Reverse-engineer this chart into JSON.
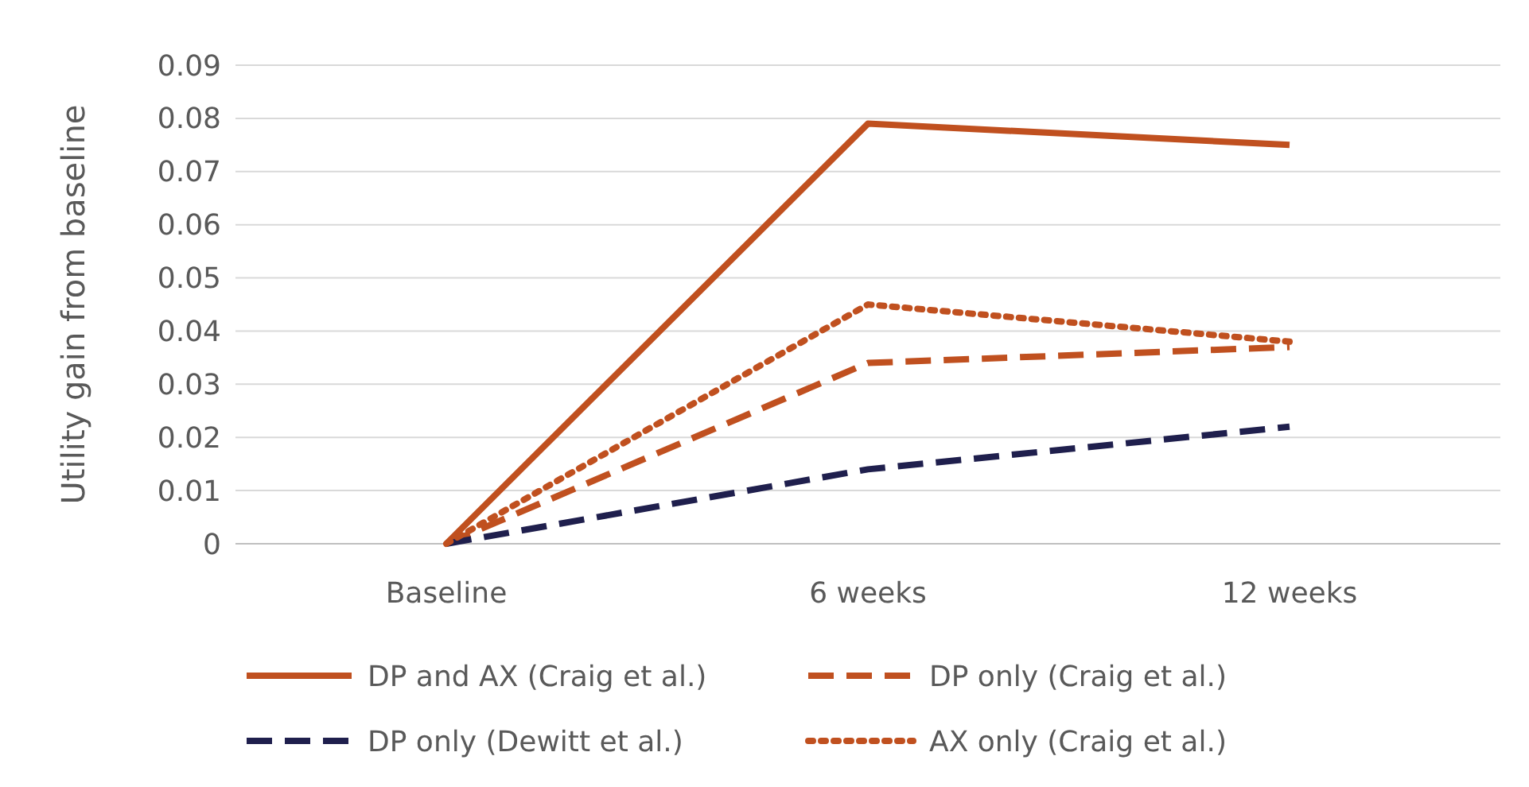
{
  "chart_data": {
    "type": "line",
    "ylabel": "Utility gain from baseline",
    "categories": [
      "Baseline",
      "6 weeks",
      "12 weeks"
    ],
    "series": [
      {
        "name": "DP and AX (Craig et al.)",
        "color": "#c0501f",
        "line_style": "solid",
        "values": [
          0,
          0.079,
          0.075
        ]
      },
      {
        "name": "DP only (Craig et al.)",
        "color": "#c0501f",
        "line_style": "dashed",
        "values": [
          0,
          0.034,
          0.037
        ]
      },
      {
        "name": "DP only (Dewitt et al.)",
        "color": "#1f1f4d",
        "line_style": "dashed",
        "values": [
          0,
          0.014,
          0.022
        ]
      },
      {
        "name": "AX only (Craig et al.)",
        "color": "#c0501f",
        "line_style": "dotted",
        "values": [
          0,
          0.045,
          0.038
        ]
      }
    ],
    "ylim": [
      0,
      0.09
    ],
    "yticks": [
      0,
      0.01,
      0.02,
      0.03,
      0.04,
      0.05,
      0.06,
      0.07,
      0.08,
      0.09
    ],
    "grid": "y",
    "legend": "bottom"
  }
}
